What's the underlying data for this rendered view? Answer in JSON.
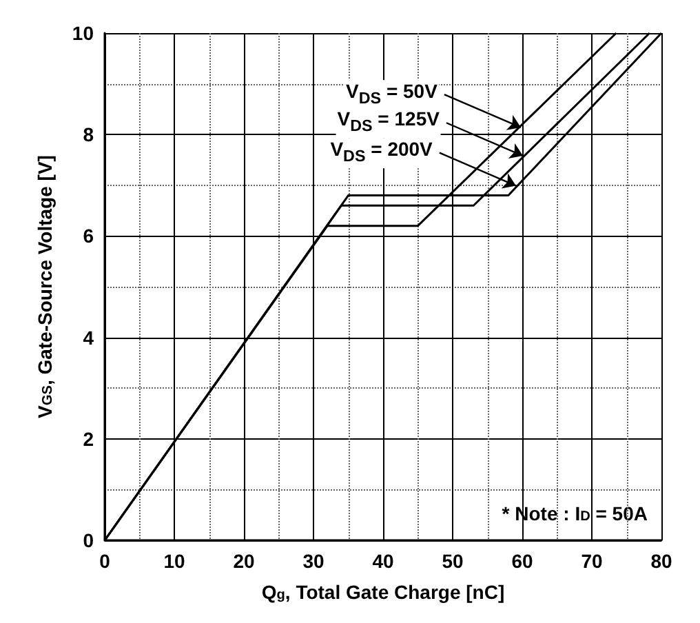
{
  "chart_data": {
    "type": "line",
    "xlabel": "Q$_{g}$, Total Gate Charge [nC]",
    "ylabel": "V$_{GS}$, Gate-Source Voltage [V]",
    "xlim": [
      0,
      80
    ],
    "xticks": [
      0,
      10,
      20,
      30,
      40,
      50,
      60,
      70,
      80
    ],
    "ylim": [
      0,
      10
    ],
    "yticks": [
      0,
      2,
      4,
      6,
      8,
      10
    ],
    "grid": true,
    "marker": "none",
    "line_style": "solid",
    "series": [
      {
        "color": "#000000",
        "x": [
          0,
          32,
          45,
          73.5
        ],
        "values": [
          0,
          6.2,
          6.2,
          10
        ]
      },
      {
        "color": "#000000",
        "x": [
          0,
          34,
          53,
          78.3
        ],
        "values": [
          0,
          6.6,
          6.6,
          10
        ]
      },
      {
        "color": "#000000",
        "x": [
          0,
          35,
          58,
          80
        ],
        "values": [
          0,
          6.8,
          6.8,
          10
        ]
      }
    ],
    "annotations": [
      {
        "text": "V$_{DS}$ = 50V",
        "x": 59.8,
        "y": 8.14
      },
      {
        "text": "V$_{DS}$ = 125V",
        "x": 60.1,
        "y": 7.58
      },
      {
        "text": "V$_{DS}$ = 200V",
        "x": 59.1,
        "y": 6.99
      },
      "* Note : I$_{D}$ = 50A"
    ]
  }
}
